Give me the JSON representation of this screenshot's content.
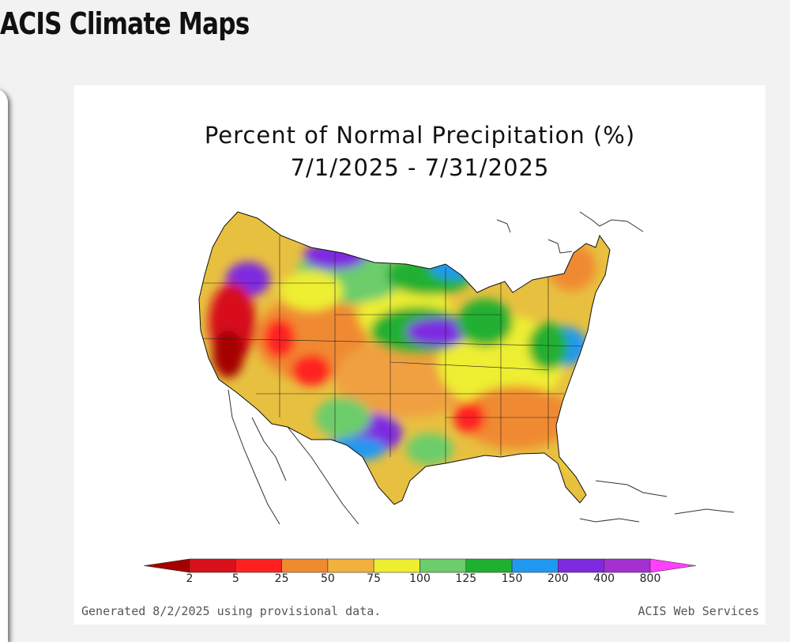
{
  "page": {
    "title": "ACIS Climate Maps"
  },
  "map": {
    "title_line1": "Percent of Normal Precipitation (%)",
    "title_line2": "7/1/2025 - 7/31/2025",
    "footer_left": "Generated 8/2/2025 using provisional data.",
    "footer_right": "ACIS Web Services"
  },
  "legend": {
    "ticks": [
      "2",
      "5",
      "25",
      "50",
      "75",
      "100",
      "125",
      "150",
      "200",
      "400",
      "800"
    ],
    "colors": [
      "#a50000",
      "#d7101c",
      "#ff2020",
      "#f08a30",
      "#f2b13c",
      "#eeee30",
      "#6ccd6a",
      "#20b030",
      "#2098f0",
      "#7e2ae0",
      "#a530d0",
      "#ff40ff"
    ]
  }
}
